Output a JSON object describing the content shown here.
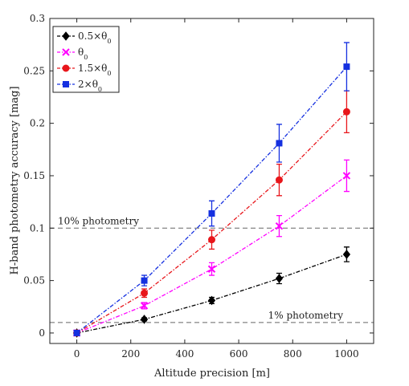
{
  "chart_data": {
    "type": "line",
    "title": "",
    "xlabel": "Altitude precision [m]",
    "ylabel": "H-band photometry accuracy [mag]",
    "xlim": [
      -100,
      1100
    ],
    "ylim": [
      -0.01,
      0.3
    ],
    "xticks": [
      0,
      200,
      400,
      600,
      800,
      1000
    ],
    "xtick_labels": [
      "0",
      "200",
      "400",
      "600",
      "800",
      "1000"
    ],
    "yticks": [
      0,
      0.05,
      0.1,
      0.15,
      0.2,
      0.25,
      0.3
    ],
    "ytick_labels": [
      "0",
      "0.05",
      "0.1",
      "0.15",
      "0.2",
      "0.25",
      "0.3"
    ],
    "grid": false,
    "legend_position": "top-left",
    "x": [
      0,
      250,
      500,
      750,
      1000
    ],
    "series": [
      {
        "name": "0.5×θ",
        "name_sub": "0",
        "color": "#000000",
        "marker": "diamond",
        "values": [
          0,
          0.013,
          0.031,
          0.052,
          0.075
        ],
        "errors": [
          0,
          0.0015,
          0.003,
          0.005,
          0.007
        ]
      },
      {
        "name": "θ",
        "name_sub": "0",
        "color": "#ff00ff",
        "marker": "x",
        "values": [
          0,
          0.026,
          0.061,
          0.102,
          0.15
        ],
        "errors": [
          0,
          0.003,
          0.006,
          0.01,
          0.015
        ]
      },
      {
        "name": "1.5×θ",
        "name_sub": "0",
        "color": "#e8161b",
        "marker": "circle",
        "values": [
          0,
          0.038,
          0.089,
          0.146,
          0.211
        ],
        "errors": [
          0,
          0.004,
          0.009,
          0.015,
          0.02
        ]
      },
      {
        "name": "2×θ",
        "name_sub": "0",
        "color": "#1530e0",
        "marker": "square",
        "values": [
          0,
          0.05,
          0.114,
          0.181,
          0.254
        ],
        "errors": [
          0,
          0.005,
          0.012,
          0.018,
          0.023
        ]
      }
    ],
    "reference_lines": [
      {
        "y": 0.1,
        "label": "10% photometry",
        "color": "#666666"
      },
      {
        "y": 0.01,
        "label": "1% photometry",
        "color": "#666666"
      }
    ]
  }
}
